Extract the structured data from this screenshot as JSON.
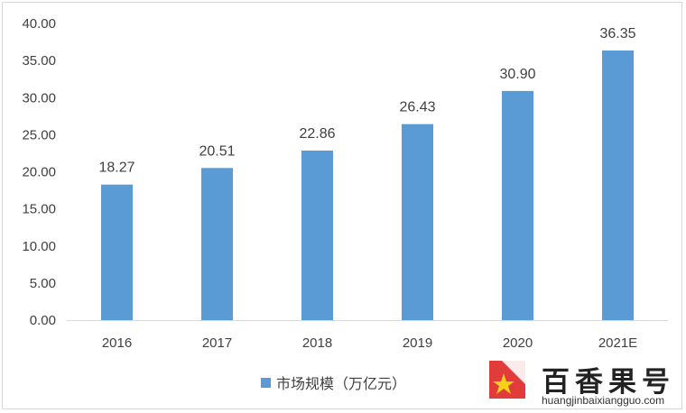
{
  "chart_data": {
    "type": "bar",
    "title": "",
    "xlabel": "",
    "ylabel": "",
    "categories": [
      "2016",
      "2017",
      "2018",
      "2019",
      "2020",
      "2021E"
    ],
    "series": [
      {
        "name": "市场规模（万亿元）",
        "values": [
          18.27,
          20.51,
          22.86,
          26.43,
          30.9,
          36.35
        ]
      }
    ],
    "data_labels": [
      "18.27",
      "20.51",
      "22.86",
      "26.43",
      "30.90",
      "36.35"
    ],
    "ylim": [
      0,
      40
    ],
    "y_ticks": [
      "0.00",
      "5.00",
      "10.00",
      "15.00",
      "20.00",
      "25.00",
      "30.00",
      "35.00",
      "40.00"
    ],
    "grid": false,
    "legend_position": "bottom",
    "bar_color": "#5b9bd5"
  },
  "legend": {
    "label": "市场规模（万亿元）"
  },
  "watermark": {
    "name": "百香果号",
    "url": "huangjinbaixiangguo.com",
    "logo_icon": "brand-logo-icon"
  }
}
